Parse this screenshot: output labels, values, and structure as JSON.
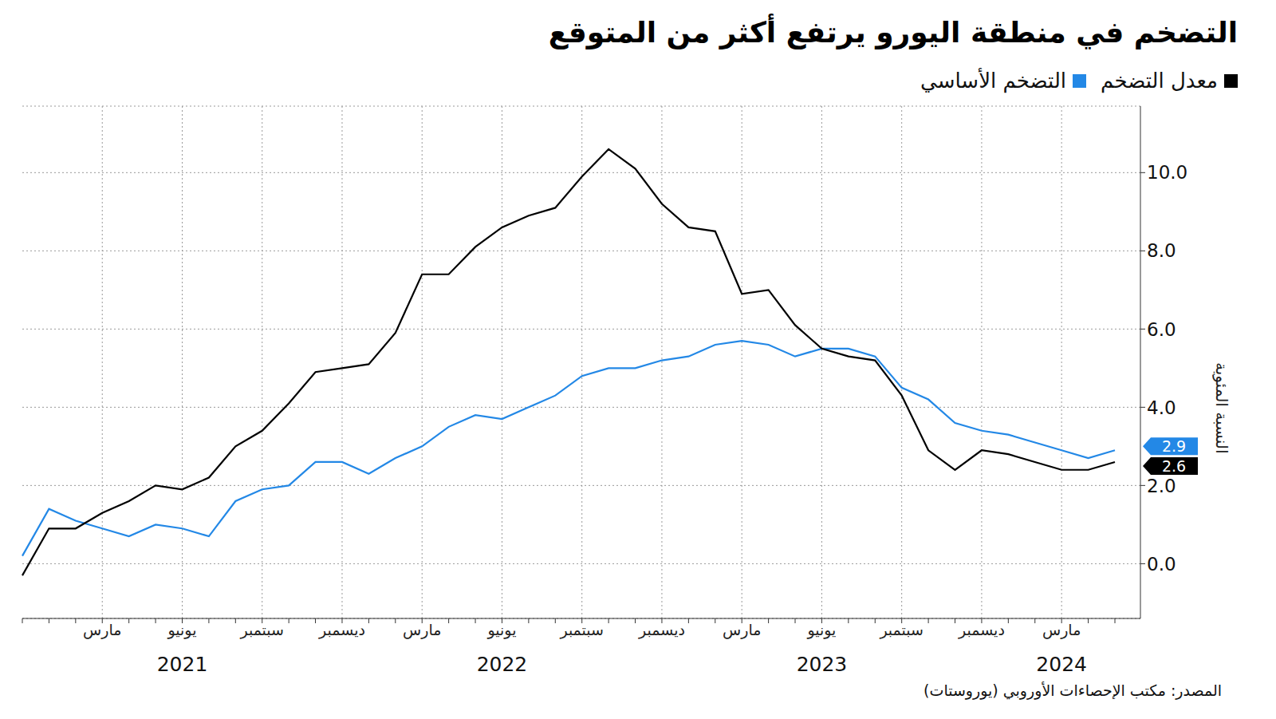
{
  "chart_data": {
    "type": "line",
    "title": "التضخم في منطقة اليورو يرتفع أكثر من المتوقع",
    "y_label": "النسبة المئوية",
    "source": "المصدر: مكتب الإحصاءات الأوروبي (يوروستات)",
    "categories": [
      null,
      null,
      null,
      "مارس",
      null,
      null,
      "يونيو",
      null,
      null,
      "سبتمبر",
      null,
      null,
      "ديسمبر",
      null,
      null,
      "مارس",
      null,
      null,
      "يونيو",
      null,
      null,
      "سبتمبر",
      null,
      null,
      "ديسمبر",
      null,
      null,
      "مارس",
      null,
      null,
      "يونيو",
      null,
      null,
      "سبتمبر",
      null,
      null,
      "ديسمبر",
      null,
      null,
      "مارس",
      null,
      null
    ],
    "year_labels": [
      null,
      null,
      null,
      null,
      null,
      null,
      "2021",
      null,
      null,
      null,
      null,
      null,
      null,
      null,
      null,
      null,
      null,
      null,
      "2022",
      null,
      null,
      null,
      null,
      null,
      null,
      null,
      null,
      null,
      null,
      null,
      "2023",
      null,
      null,
      null,
      null,
      null,
      null,
      null,
      null,
      "2024",
      null,
      null
    ],
    "series": [
      {
        "name": "معدل التضخم",
        "color": "#000000",
        "values": [
          -0.3,
          0.9,
          0.9,
          1.3,
          1.6,
          2.0,
          1.9,
          2.2,
          3.0,
          3.4,
          4.1,
          4.9,
          5.0,
          5.1,
          5.9,
          7.4,
          7.4,
          8.1,
          8.6,
          8.9,
          9.1,
          9.9,
          10.6,
          10.1,
          9.2,
          8.6,
          8.5,
          6.9,
          7.0,
          6.1,
          5.5,
          5.3,
          5.2,
          4.3,
          2.9,
          2.4,
          2.9,
          2.8,
          2.6,
          2.4,
          2.4,
          2.6
        ],
        "value_labels": [
          null,
          null,
          null,
          null,
          null,
          null,
          null,
          null,
          null,
          null,
          null,
          null,
          null,
          null,
          null,
          null,
          null,
          null,
          null,
          null,
          null,
          null,
          null,
          null,
          null,
          null,
          null,
          null,
          null,
          null,
          null,
          null,
          null,
          null,
          null,
          null,
          null,
          null,
          null,
          null,
          null,
          "2.6"
        ]
      },
      {
        "name": "التضخم الأساسي",
        "color": "#2388e6",
        "values": [
          0.2,
          1.4,
          1.1,
          0.9,
          0.7,
          1.0,
          0.9,
          0.7,
          1.6,
          1.9,
          2.0,
          2.6,
          2.6,
          2.3,
          2.7,
          3.0,
          3.5,
          3.8,
          3.7,
          4.0,
          4.3,
          4.8,
          5.0,
          5.0,
          5.2,
          5.3,
          5.6,
          5.7,
          5.6,
          5.3,
          5.5,
          5.5,
          5.3,
          4.5,
          4.2,
          3.6,
          3.4,
          3.3,
          3.1,
          2.9,
          2.7,
          2.9
        ],
        "value_labels": [
          null,
          null,
          null,
          null,
          null,
          null,
          null,
          null,
          null,
          null,
          null,
          null,
          null,
          null,
          null,
          null,
          null,
          null,
          null,
          null,
          null,
          null,
          null,
          null,
          null,
          null,
          null,
          null,
          null,
          null,
          null,
          null,
          null,
          null,
          null,
          null,
          null,
          null,
          null,
          null,
          null,
          "2.9"
        ]
      }
    ],
    "ylim": [
      -1.4,
      11.7
    ],
    "yticks": [
      {
        "value": 0,
        "label": "0.0"
      },
      {
        "value": 2,
        "label": "2.0"
      },
      {
        "value": 4,
        "label": "4.0"
      },
      {
        "value": 6,
        "label": "6.0"
      },
      {
        "value": 8,
        "label": "8.0"
      },
      {
        "value": 10,
        "label": "10.0"
      }
    ],
    "grid": true
  }
}
